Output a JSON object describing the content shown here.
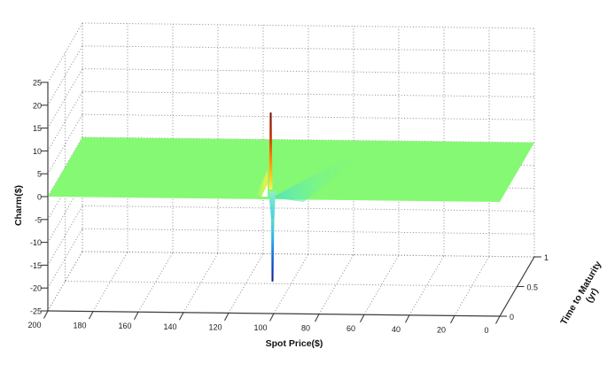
{
  "chart_data": {
    "type": "surface",
    "title": "",
    "xlabel": "Spot Price($)",
    "ylabel": "Time to Maturity (yr)",
    "ylabel_lines": [
      "Time to Maturity",
      "(yr)"
    ],
    "zlabel": "Charm($)",
    "x_tick_labels": [
      "200",
      "180",
      "160",
      "140",
      "120",
      "100",
      "80",
      "60",
      "40",
      "20",
      "0"
    ],
    "y_tick_labels": [
      "0",
      "0.5",
      "1"
    ],
    "z_tick_labels": [
      "25",
      "20",
      "15",
      "10",
      "5",
      "0",
      "-5",
      "-10",
      "-15",
      "-20",
      "-25"
    ],
    "x_range": [
      200,
      0
    ],
    "y_range": [
      0,
      1
    ],
    "z_range": [
      -25,
      25
    ],
    "grid": true,
    "legend": "none",
    "series": [
      {
        "name": "Charm surface",
        "baseline_value": 0,
        "strike_spot": 100,
        "peak_positive_charm": 19,
        "peak_negative_charm": -18,
        "description": "Charm is ~0 across the whole spot/maturity surface except near the strike (spot ~100): as time to maturity approaches 0 the surface spikes to ~+19 on one side of the strike (thin yellow-to-dark-red spike) and ~-18 on the other (cyan-to-navy spike), with a faint teal fan spreading from the strike toward longer maturities."
      }
    ]
  },
  "colors": {
    "background": "#ffffff",
    "surface_green": "#85f973",
    "grid_gray": "#8a8a8a",
    "axis_dark": "#3c3c3c",
    "fan_teal": "#52e0c6",
    "gradients": {
      "up": [
        [
          "0",
          "#6f1400"
        ],
        [
          "0.3",
          "#c92c00"
        ],
        [
          "0.55",
          "#fe7a00"
        ],
        [
          "0.82",
          "#ffc71e"
        ],
        [
          "1",
          "#f8f557"
        ]
      ],
      "down": [
        [
          "0",
          "#5fdcc4"
        ],
        [
          "0.3",
          "#2fb6e8"
        ],
        [
          "0.6",
          "#1b6ad9"
        ],
        [
          "0.85",
          "#0f35ad"
        ],
        [
          "1",
          "#0c1d86"
        ]
      ],
      "funnel": [
        [
          "0",
          "#8df0c9"
        ],
        [
          "1",
          "#46cfe2"
        ]
      ],
      "fan": [
        [
          "0",
          "rgba(82,224,198,0.95)"
        ],
        [
          "0.45",
          "rgba(110,240,160,0.4)"
        ],
        [
          "1",
          "rgba(133,249,115,0)"
        ]
      ],
      "flare": [
        [
          "0",
          "rgba(248,245,87,0)"
        ],
        [
          "1",
          "rgba(244,240,60,0.95)"
        ]
      ]
    }
  }
}
